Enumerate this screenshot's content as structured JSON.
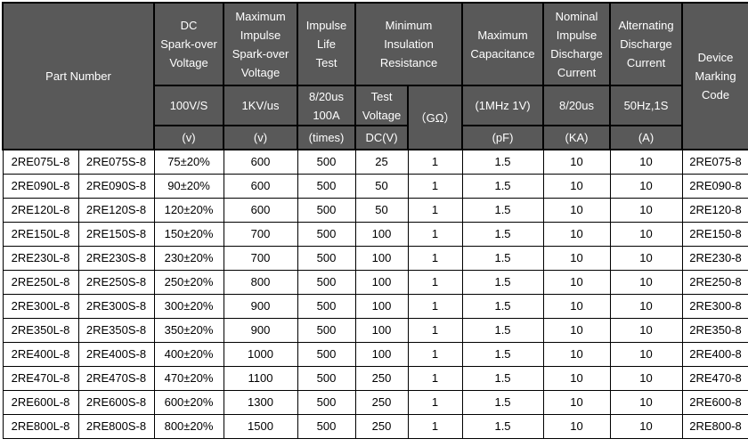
{
  "colors": {
    "header_bg": "#595959",
    "header_text": "#ffffff",
    "border": "#000000",
    "cell_bg": "#ffffff",
    "cell_text": "#000000"
  },
  "table": {
    "header": {
      "part_number": "Part Number",
      "dc_sparkover": {
        "title": "DC\nSpark-over\nVoltage",
        "condition": "100V/S",
        "unit": "(v)"
      },
      "max_impulse_sparkover": {
        "title": "Maximum\nImpulse\nSpark-over\nVoltage",
        "condition": "1KV/us",
        "unit": "(v)"
      },
      "impulse_life": {
        "title": "Impulse\nLife\nTest",
        "condition": "8/20us\n100A",
        "unit": "(times)"
      },
      "min_insulation": {
        "title": "Minimum\nInsulation\nResistance",
        "test_voltage": "Test\nVoltage",
        "test_voltage_unit": "DC(V)",
        "resistance_unit": "（GΩ）"
      },
      "max_capacitance": {
        "title": "Maximum\nCapacitance",
        "condition": "(1MHz 1V)",
        "unit": "(pF)"
      },
      "nominal_impulse_discharge": {
        "title": "Nominal\nImpulse\nDischarge\nCurrent",
        "condition": "8/20us",
        "unit": "(KA)"
      },
      "alternating_discharge": {
        "title": "Alternating\nDischarge\nCurrent",
        "condition": "50Hz,1S",
        "unit": "(A)"
      },
      "device_marking": {
        "title": "Device\nMarking\nCode"
      }
    },
    "rows": [
      [
        "2RE075L-8",
        "2RE075S-8",
        "75±20%",
        "600",
        "500",
        "25",
        "1",
        "1.5",
        "10",
        "10",
        "2RE075-8"
      ],
      [
        "2RE090L-8",
        "2RE090S-8",
        "90±20%",
        "600",
        "500",
        "50",
        "1",
        "1.5",
        "10",
        "10",
        "2RE090-8"
      ],
      [
        "2RE120L-8",
        "2RE120S-8",
        "120±20%",
        "600",
        "500",
        "50",
        "1",
        "1.5",
        "10",
        "10",
        "2RE120-8"
      ],
      [
        "2RE150L-8",
        "2RE150S-8",
        "150±20%",
        "700",
        "500",
        "100",
        "1",
        "1.5",
        "10",
        "10",
        "2RE150-8"
      ],
      [
        "2RE230L-8",
        "2RE230S-8",
        "230±20%",
        "700",
        "500",
        "100",
        "1",
        "1.5",
        "10",
        "10",
        "2RE230-8"
      ],
      [
        "2RE250L-8",
        "2RE250S-8",
        "250±20%",
        "800",
        "500",
        "100",
        "1",
        "1.5",
        "10",
        "10",
        "2RE250-8"
      ],
      [
        "2RE300L-8",
        "2RE300S-8",
        "300±20%",
        "900",
        "500",
        "100",
        "1",
        "1.5",
        "10",
        "10",
        "2RE300-8"
      ],
      [
        "2RE350L-8",
        "2RE350S-8",
        "350±20%",
        "900",
        "500",
        "100",
        "1",
        "1.5",
        "10",
        "10",
        "2RE350-8"
      ],
      [
        "2RE400L-8",
        "2RE400S-8",
        "400±20%",
        "1000",
        "500",
        "100",
        "1",
        "1.5",
        "10",
        "10",
        "2RE400-8"
      ],
      [
        "2RE470L-8",
        "2RE470S-8",
        "470±20%",
        "1100",
        "500",
        "250",
        "1",
        "1.5",
        "10",
        "10",
        "2RE470-8"
      ],
      [
        "2RE600L-8",
        "2RE600S-8",
        "600±20%",
        "1300",
        "500",
        "250",
        "1",
        "1.5",
        "10",
        "10",
        "2RE600-8"
      ],
      [
        "2RE800L-8",
        "2RE800S-8",
        "800±20%",
        "1500",
        "500",
        "250",
        "1",
        "1.5",
        "10",
        "10",
        "2RE800-8"
      ]
    ],
    "column_cell_names": [
      "part-number-l-cell",
      "part-number-s-cell",
      "dc-sparkover-voltage-cell",
      "max-impulse-sparkover-voltage-cell",
      "impulse-life-test-cell",
      "test-voltage-cell",
      "insulation-resistance-cell",
      "max-capacitance-cell",
      "nominal-impulse-discharge-cell",
      "alternating-discharge-cell",
      "device-marking-code-cell"
    ]
  }
}
